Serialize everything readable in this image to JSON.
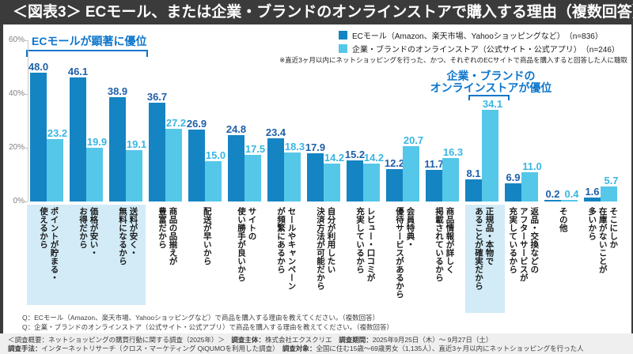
{
  "title": "＜図表3＞ ECモール、または企業・ブランドのオンラインストアで購入する理由（複数回答）",
  "colors": {
    "bar_ec": "#1584c2",
    "bar_brand": "#55c7e9",
    "value_ec": "#1e5fa9",
    "value_brand": "#38b6e3",
    "annotation": "#0e76cc",
    "highlight": "#d2ebf7"
  },
  "legend": [
    {
      "label": "ECモール（Amazon、楽天市場、Yahooショッピングなど）　（n=836）",
      "color_key": "bar_ec"
    },
    {
      "label": "企業・ブランドのオンラインストア（公式サイト・公式アプリ）　（n=246）",
      "color_key": "bar_brand"
    }
  ],
  "note": "※直近3ヶ月以内にネットショッピングを行った、かつ、それぞれのECサイトで商品を購入すると回答した人に聴取",
  "annotations": {
    "left": "ECモールが顕著に優位",
    "right_line1": "企業・ブランドの",
    "right_line2": "オンラインストアが優位"
  },
  "chart_data": {
    "type": "bar",
    "categories": [
      "ポイントが貯まる・\n使えるから",
      "価格が安い・\nお得だから",
      "送料が安く・\n無料になるから",
      "商品の品揃えが\n豊富だから",
      "配送が早いから",
      "サイトの\n使い勝手が良いから",
      "セールやキャンペーン\nが頻繁にあるから",
      "自分が利用したい\n決済方法が可能だから",
      "レビュー・口コミが\n充実しているから",
      "会員特典・\n優待サービスがあるから",
      "商品情報が詳しく\n掲載されているから",
      "正規品・本物で\nあることが確実だから",
      "返品・交換などの\nアフターサービスが\n充実しているから",
      "その他",
      "そこにしか\n在庫がないことが\n多いから"
    ],
    "series": [
      {
        "name": "ECモール（Amazon、楽天市場、Yahooショッピングなど）",
        "n": 836,
        "values": [
          48.0,
          46.1,
          38.9,
          36.7,
          26.9,
          24.8,
          23.4,
          17.9,
          15.2,
          12.2,
          11.7,
          8.1,
          6.9,
          0.2,
          1.6
        ]
      },
      {
        "name": "企業・ブランドのオンラインストア（公式サイト・公式アプリ）",
        "n": 246,
        "values": [
          23.2,
          19.9,
          19.1,
          27.2,
          15.0,
          17.5,
          18.3,
          14.2,
          14.2,
          20.7,
          16.3,
          34.1,
          11.0,
          0.4,
          5.7
        ]
      }
    ],
    "ylim": [
      0,
      60
    ],
    "yticks": [
      0,
      20,
      40,
      60
    ],
    "grid": false,
    "legend_position": "top-right",
    "highlight_groups": [
      {
        "from": 0,
        "count": 3
      },
      {
        "from": 11,
        "count": 1
      }
    ]
  },
  "questions": [
    "Q：ECモール（Amazon、楽天市場、Yahooショッピングなど）で商品を購入する理由を教えてください。（複数回答）",
    "Q：企業・ブランドのオンラインストア（公式サイト・公式アプリ）で商品を購入する理由を教えてください。（複数回答）"
  ],
  "footer": {
    "line1": [
      {
        "t": "＜調査概要：ネットショッピングの購買行動に関する調査（2025年）＞　",
        "b": false
      },
      {
        "t": "調査主体：",
        "b": true
      },
      {
        "t": "株式会社エクスクリエ　",
        "b": false
      },
      {
        "t": "調査期間：",
        "b": true
      },
      {
        "t": "2025年9月25日（木）～ 9月27日（土）",
        "b": false
      }
    ],
    "line2": [
      {
        "t": "調査手法：",
        "b": true
      },
      {
        "t": "インターネットリサーチ（クロス・マーケティング QiQUMOを利用した調査）　",
        "b": false
      },
      {
        "t": "調査対象：",
        "b": true
      },
      {
        "t": "全国に住む15歳～69歳男女（1,135人）、直近3ヶ月以内にネットショッピングを行った人",
        "b": false
      }
    ]
  }
}
